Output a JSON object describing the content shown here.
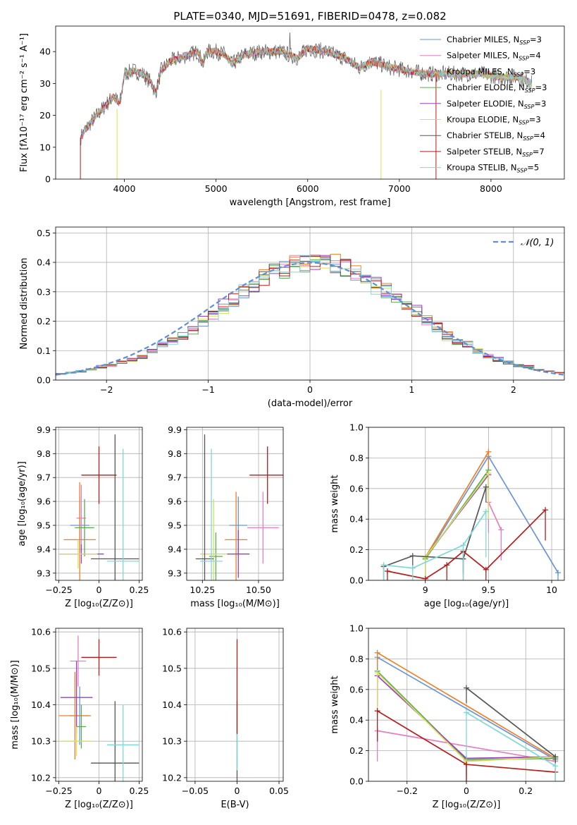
{
  "title": "PLATE=0340, MJD=51691, FIBERID=0478, z=0.082",
  "models": [
    {
      "name": "Chabrier MILES",
      "nssp": "3",
      "color": "#6a93d8"
    },
    {
      "name": "Salpeter MILES",
      "nssp": "4",
      "color": "#e57fbf"
    },
    {
      "name": "Kroupa MILES",
      "nssp": "3",
      "color": "#ee7f27"
    },
    {
      "name": "Chabrier ELODIE",
      "nssp": "3",
      "color": "#5aaa55"
    },
    {
      "name": "Salpeter ELODIE",
      "nssp": "3",
      "color": "#9b3fbf"
    },
    {
      "name": "Kroupa ELODIE",
      "nssp": "3",
      "color": "#d4e05a"
    },
    {
      "name": "Chabrier STELIB",
      "nssp": "4",
      "color": "#555555"
    },
    {
      "name": "Salpeter STELIB",
      "nssp": "7",
      "color": "#b51d1d"
    },
    {
      "name": "Kroupa STELIB",
      "nssp": "5",
      "color": "#7fd8d8"
    }
  ],
  "legend_suffix": "N",
  "legend_sub": "SSP",
  "chart_data": [
    {
      "id": "spectrum",
      "type": "line",
      "title": "PLATE=0340, MJD=51691, FIBERID=0478, z=0.082",
      "xlabel": "wavelength [Angstrom, rest frame]",
      "ylabel": "Flux [fλ10⁻¹⁷ erg cm⁻² s⁻¹ A⁻¹]",
      "xlim": [
        3250,
        8800
      ],
      "ylim": [
        0,
        48
      ],
      "xticks": [
        4000,
        5000,
        6000,
        7000,
        8000
      ],
      "yticks": [
        0,
        10,
        20,
        30,
        40
      ],
      "grid": false,
      "legend": "top-right",
      "continuum": {
        "x": [
          3520,
          3560,
          3640,
          3760,
          3880,
          3940,
          3960,
          4000,
          4100,
          4200,
          4300,
          4340,
          4400,
          4500,
          4600,
          4700,
          4800,
          4861,
          4900,
          5000,
          5100,
          5175,
          5300,
          5500,
          5700,
          5890,
          6000,
          6200,
          6400,
          6563,
          6700,
          6900,
          7100,
          7300,
          7500,
          7700,
          7900,
          8100,
          8300,
          8450
        ],
        "y": [
          13,
          15,
          18,
          22,
          26,
          24,
          25,
          33,
          34,
          33,
          30,
          27,
          34,
          37,
          38,
          39,
          40,
          36,
          40,
          40,
          39,
          36,
          39,
          40,
          40,
          38,
          41,
          40,
          38,
          35,
          37,
          35,
          34,
          33,
          33,
          33,
          33,
          32,
          32,
          30
        ]
      }
    },
    {
      "id": "residuals",
      "type": "histogram",
      "xlabel": "(data-model)/error",
      "ylabel": "Normed distribution",
      "xlim": [
        -2.5,
        2.5
      ],
      "ylim": [
        0,
        0.52
      ],
      "xticks": [
        -2,
        -1,
        0,
        1,
        2
      ],
      "yticks": [
        0.0,
        0.1,
        0.2,
        0.3,
        0.4,
        0.5
      ],
      "grid": true,
      "legend": "top-right",
      "gaussian_label": "𝒩(0, 1)",
      "bin_edges": [
        -2.5,
        -2.4,
        -2.3,
        -2.2,
        -2.1,
        -2.0,
        -1.9,
        -1.8,
        -1.7,
        -1.6,
        -1.5,
        -1.4,
        -1.3,
        -1.2,
        -1.1,
        -1.0,
        -0.9,
        -0.8,
        -0.7,
        -0.6,
        -0.5,
        -0.4,
        -0.3,
        -0.2,
        -0.1,
        0.0,
        0.1,
        0.2,
        0.3,
        0.4,
        0.5,
        0.6,
        0.7,
        0.8,
        0.9,
        1.0,
        1.1,
        1.2,
        1.3,
        1.4,
        1.5,
        1.6,
        1.7,
        1.8,
        1.9,
        2.0,
        2.1,
        2.2,
        2.3,
        2.4,
        2.5
      ],
      "base": [
        0.02,
        0.025,
        0.03,
        0.035,
        0.045,
        0.05,
        0.06,
        0.07,
        0.08,
        0.1,
        0.12,
        0.13,
        0.15,
        0.17,
        0.2,
        0.22,
        0.25,
        0.27,
        0.3,
        0.32,
        0.35,
        0.37,
        0.38,
        0.39,
        0.4,
        0.4,
        0.4,
        0.39,
        0.38,
        0.36,
        0.34,
        0.32,
        0.3,
        0.27,
        0.25,
        0.23,
        0.2,
        0.18,
        0.15,
        0.13,
        0.12,
        0.1,
        0.08,
        0.07,
        0.06,
        0.05,
        0.045,
        0.035,
        0.03,
        0.025
      ]
    },
    {
      "id": "age_vs_Z",
      "type": "errorbar",
      "xlabel": "Z [log₁₀(Z/Z⊙)]",
      "ylabel": "age  [log₁₀(age/yr)]",
      "xlim": [
        -0.27,
        0.27
      ],
      "ylim": [
        9.27,
        9.91
      ],
      "xticks": [
        -0.25,
        0.0,
        0.25
      ],
      "yticks": [
        9.3,
        9.4,
        9.5,
        9.6,
        9.7,
        9.8,
        9.9
      ],
      "grid": true,
      "points": [
        {
          "x": -0.12,
          "y": 9.5,
          "xerr": 0.06,
          "yerr": 0.12
        },
        {
          "x": -0.11,
          "y": 9.53,
          "xerr": 0.03,
          "yerr": 0.14
        },
        {
          "x": -0.12,
          "y": 9.44,
          "xerr": 0.1,
          "yerr": 0.24
        },
        {
          "x": -0.09,
          "y": 9.49,
          "xerr": 0.06,
          "yerr": 0.12
        },
        {
          "x": -0.11,
          "y": 9.38,
          "xerr": 0.14,
          "yerr": 0.04
        },
        {
          "x": -0.13,
          "y": 9.38,
          "xerr": 0.12,
          "yerr": 0.06
        },
        {
          "x": 0.1,
          "y": 9.36,
          "xerr": 0.15,
          "yerr": 0.52
        },
        {
          "x": 0.0,
          "y": 9.71,
          "xerr": 0.11,
          "yerr": 0.12
        },
        {
          "x": 0.15,
          "y": 9.35,
          "xerr": 0.1,
          "yerr": 0.47
        }
      ]
    },
    {
      "id": "age_vs_mass",
      "type": "errorbar",
      "xlabel": "mass [log₁₀(M/M⊙)]",
      "ylabel": "",
      "xlim": [
        10.18,
        10.61
      ],
      "ylim": [
        9.27,
        9.91
      ],
      "xticks": [
        10.25,
        10.5
      ],
      "xticklabels": [
        "10.25",
        "10.50"
      ],
      "yticks": [
        9.3,
        9.4,
        9.5,
        9.6,
        9.7,
        9.8,
        9.9
      ],
      "grid": true,
      "points": [
        {
          "x": 10.41,
          "y": 9.5,
          "xerr": 0.04,
          "yerr": 0.12
        },
        {
          "x": 10.52,
          "y": 9.49,
          "xerr": 0.07,
          "yerr": 0.15
        },
        {
          "x": 10.4,
          "y": 9.44,
          "xerr": 0.05,
          "yerr": 0.2
        },
        {
          "x": 10.31,
          "y": 9.37,
          "xerr": 0.03,
          "yerr": 0.1
        },
        {
          "x": 10.41,
          "y": 9.38,
          "xerr": 0.05,
          "yerr": 0.1
        },
        {
          "x": 10.3,
          "y": 9.38,
          "xerr": 0.06,
          "yerr": 0.23
        },
        {
          "x": 10.26,
          "y": 9.36,
          "xerr": 0.04,
          "yerr": 0.52
        },
        {
          "x": 10.54,
          "y": 9.71,
          "xerr": 0.08,
          "yerr": 0.12
        },
        {
          "x": 10.29,
          "y": 9.35,
          "xerr": 0.05,
          "yerr": 0.47
        }
      ]
    },
    {
      "id": "weight_vs_age",
      "type": "line",
      "xlabel": "age  [log₁₀(age/yr)]",
      "ylabel": "mass weight",
      "xlim": [
        8.55,
        10.1
      ],
      "ylim": [
        0,
        1
      ],
      "xticks": [
        9.0,
        9.5,
        10.0
      ],
      "yticks": [
        0,
        0.2,
        0.4,
        0.6,
        0.8,
        1.0
      ],
      "grid": true,
      "series": [
        {
          "x": [
            9.0,
            9.5,
            10.05
          ],
          "y": [
            0.14,
            0.81,
            0.05
          ]
        },
        {
          "x": [
            9.5,
            9.6
          ],
          "y": [
            0.51,
            0.33
          ]
        },
        {
          "x": [
            9.0,
            9.5
          ],
          "y": [
            0.15,
            0.84
          ]
        },
        {
          "x": [
            9.0,
            9.5
          ],
          "y": [
            0.14,
            0.72
          ]
        },
        {
          "x": [
            9.0,
            9.5
          ],
          "y": [
            0.15,
            0.69
          ]
        },
        {
          "x": [
            9.0,
            9.5
          ],
          "y": [
            0.15,
            0.7
          ]
        },
        {
          "x": [
            8.67,
            8.9,
            9.3,
            9.48
          ],
          "y": [
            0.09,
            0.16,
            0.14,
            0.61
          ]
        },
        {
          "x": [
            8.7,
            9.0,
            9.17,
            9.3,
            9.48,
            9.95
          ],
          "y": [
            0.06,
            0.01,
            0.1,
            0.19,
            0.07,
            0.46
          ]
        },
        {
          "x": [
            8.67,
            8.9,
            9.3,
            9.48
          ],
          "y": [
            0.1,
            0.08,
            0.23,
            0.45
          ]
        }
      ]
    },
    {
      "id": "mass_vs_Z",
      "type": "errorbar",
      "xlabel": "Z [log₁₀(Z/Z⊙)]",
      "ylabel": "mass [log₁₀(M/M⊙)]",
      "xlim": [
        -0.27,
        0.27
      ],
      "ylim": [
        10.19,
        10.61
      ],
      "xticks": [
        -0.25,
        0.0,
        0.25
      ],
      "yticks": [
        10.2,
        10.3,
        10.4,
        10.5,
        10.6
      ],
      "grid": true,
      "points": [
        {
          "x": -0.12,
          "y": 10.37,
          "xerr": 0.06,
          "yerr": 0.08
        },
        {
          "x": -0.13,
          "y": 10.52,
          "xerr": 0.05,
          "yerr": 0.07
        },
        {
          "x": -0.15,
          "y": 10.37,
          "xerr": 0.1,
          "yerr": 0.12
        },
        {
          "x": -0.11,
          "y": 10.34,
          "xerr": 0.03,
          "yerr": 0.06
        },
        {
          "x": -0.14,
          "y": 10.42,
          "xerr": 0.1,
          "yerr": 0.1
        },
        {
          "x": -0.14,
          "y": 10.3,
          "xerr": 0.1,
          "yerr": 0.04
        },
        {
          "x": 0.1,
          "y": 10.24,
          "xerr": 0.15,
          "yerr": 0.17
        },
        {
          "x": 0.0,
          "y": 10.53,
          "xerr": 0.11,
          "yerr": 0.05
        },
        {
          "x": 0.15,
          "y": 10.29,
          "xerr": 0.1,
          "yerr": 0.11
        }
      ]
    },
    {
      "id": "mass_vs_ebv",
      "type": "errorbar",
      "xlabel": "E(B-V)",
      "ylabel": "",
      "xlim": [
        -0.06,
        0.055
      ],
      "ylim": [
        10.19,
        10.61
      ],
      "xticks": [
        -0.05,
        0.0,
        0.05
      ],
      "yticks": [
        10.2,
        10.3,
        10.4,
        10.5,
        10.6
      ],
      "grid": true,
      "points": [
        {
          "x": 0.0,
          "y": 10.24,
          "xerr": 0,
          "yerr": 0.17
        },
        {
          "x": 0.0,
          "y": 10.3,
          "xerr": 0,
          "yerr": 0.08
        },
        {
          "x": 0.0,
          "y": 10.38,
          "xerr": 0,
          "yerr": 0.12
        },
        {
          "x": 0.0,
          "y": 10.45,
          "xerr": 0,
          "yerr": 0.13
        }
      ]
    },
    {
      "id": "weight_vs_Z",
      "type": "line",
      "xlabel": "Z [log₁₀(Z/Z⊙)]",
      "ylabel": "mass weight",
      "xlim": [
        -0.33,
        0.33
      ],
      "ylim": [
        0,
        1
      ],
      "xticks": [
        -0.2,
        0.0,
        0.2
      ],
      "yticks": [
        0,
        0.2,
        0.4,
        0.6,
        0.8,
        1.0
      ],
      "grid": true,
      "series": [
        {
          "x": [
            -0.3,
            0.3
          ],
          "y": [
            0.81,
            0.14
          ]
        },
        {
          "x": [
            -0.3,
            0.3
          ],
          "y": [
            0.33,
            0.13
          ]
        },
        {
          "x": [
            -0.3,
            0.3
          ],
          "y": [
            0.84,
            0.15
          ]
        },
        {
          "x": [
            -0.3,
            0.0,
            0.3
          ],
          "y": [
            0.72,
            0.14,
            0.15
          ]
        },
        {
          "x": [
            -0.3,
            0.0,
            0.3
          ],
          "y": [
            0.69,
            0.15,
            0.16
          ]
        },
        {
          "x": [
            -0.3,
            0.0,
            0.3
          ],
          "y": [
            0.71,
            0.13,
            0.16
          ]
        },
        {
          "x": [
            0.0,
            0.3
          ],
          "y": [
            0.61,
            0.16
          ]
        },
        {
          "x": [
            -0.3,
            0.0,
            0.3
          ],
          "y": [
            0.46,
            0.11,
            0.06
          ]
        },
        {
          "x": [
            0.0,
            0.3
          ],
          "y": [
            0.45,
            0.1
          ]
        }
      ]
    }
  ]
}
